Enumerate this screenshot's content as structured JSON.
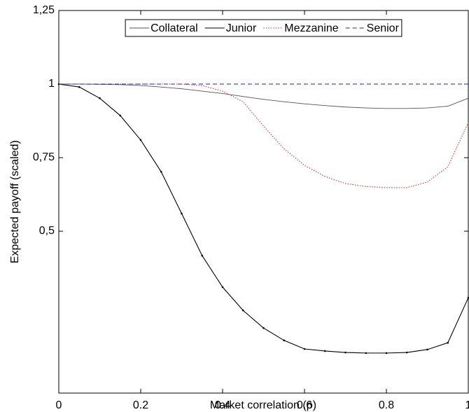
{
  "chart_data": {
    "type": "line",
    "xlabel": "Market correlation (ρ)",
    "ylabel": "Expected payoff (scaled)",
    "x": [
      0,
      0.05,
      0.1,
      0.15,
      0.2,
      0.25,
      0.3,
      0.35,
      0.4,
      0.45,
      0.5,
      0.55,
      0.6,
      0.65,
      0.7,
      0.75,
      0.8,
      0.85,
      0.9,
      0.95,
      1
    ],
    "series": [
      {
        "name": "Collateral",
        "color": "#555555",
        "style": "solid",
        "values": [
          1,
          1,
          0.999,
          0.998,
          0.995,
          0.99,
          0.984,
          0.976,
          0.968,
          0.958,
          0.948,
          0.94,
          0.933,
          0.927,
          0.922,
          0.919,
          0.917,
          0.917,
          0.919,
          0.925,
          0.952
        ]
      },
      {
        "name": "Junior",
        "color": "#000000",
        "style": "dotmarked",
        "values": [
          1,
          0.99,
          0.952,
          0.893,
          0.81,
          0.702,
          0.56,
          0.417,
          0.31,
          0.231,
          0.171,
          0.129,
          0.1,
          0.093,
          0.088,
          0.086,
          0.086,
          0.088,
          0.098,
          0.121,
          0.274
        ]
      },
      {
        "name": "Mezzanine",
        "color": "#e03030",
        "style": "dotted",
        "values": [
          1,
          1,
          1,
          1,
          1,
          1,
          1,
          0.995,
          0.976,
          0.94,
          0.857,
          0.78,
          0.724,
          0.686,
          0.662,
          0.652,
          0.648,
          0.648,
          0.667,
          0.719,
          0.869
        ]
      },
      {
        "name": "Senior",
        "color": "#2020d0",
        "style": "dashed",
        "values": [
          1,
          1,
          1,
          1,
          1,
          1,
          1,
          1,
          1,
          1,
          1,
          1,
          1,
          1,
          1,
          1,
          1,
          1,
          1,
          1,
          1
        ]
      }
    ],
    "xlim": [
      0,
      1
    ],
    "xticks": [
      0,
      0.2,
      0.4,
      0.6,
      0.8,
      1
    ],
    "ylim": [
      -0.05,
      1.25
    ],
    "yticks": [
      {
        "value": 0.5,
        "label": "0,5"
      },
      {
        "value": 0.75,
        "label": "0,75"
      },
      1,
      {
        "value": 1.25,
        "label": "1,25"
      }
    ],
    "legend": "top"
  }
}
